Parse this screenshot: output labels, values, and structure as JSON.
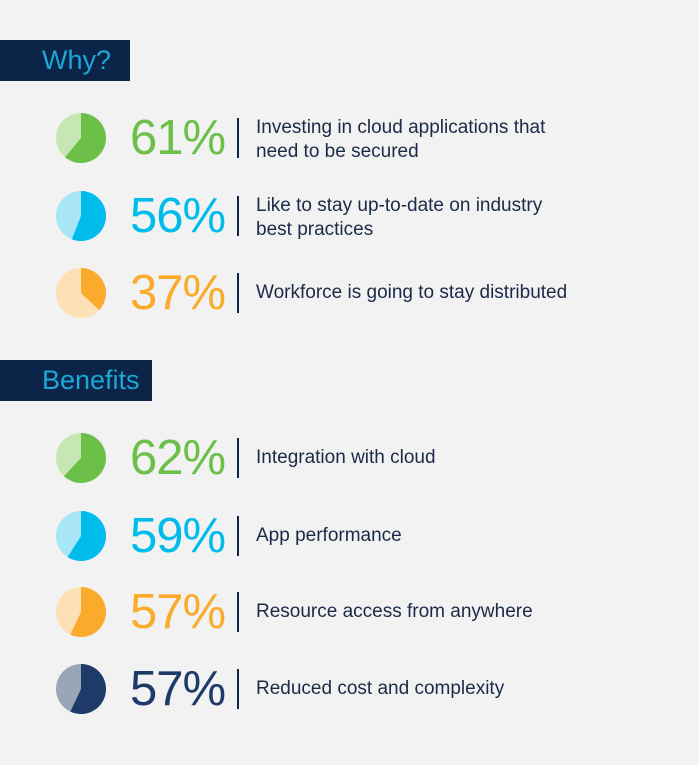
{
  "sections": [
    {
      "title": "Why?",
      "items": [
        {
          "value": 61,
          "label": "61%",
          "text": "Investing in cloud applications that need to be secured",
          "color": "#6cc04a",
          "light": "#c6e6b4"
        },
        {
          "value": 56,
          "label": "56%",
          "text": "Like to stay up-to-date on industry best practices",
          "color": "#00bceb",
          "light": "#a8e6f7"
        },
        {
          "value": 37,
          "label": "37%",
          "text": "Workforce is going to stay distributed",
          "color": "#fbab2c",
          "light": "#fde0b5"
        }
      ]
    },
    {
      "title": "Benefits",
      "items": [
        {
          "value": 62,
          "label": "62%",
          "text": "Integration with cloud",
          "color": "#6cc04a",
          "light": "#c6e6b4"
        },
        {
          "value": 59,
          "label": "59%",
          "text": "App performance",
          "color": "#00bceb",
          "light": "#a8e6f7"
        },
        {
          "value": 57,
          "label": "57%",
          "text": "Resource access from anywhere",
          "color": "#fbab2c",
          "light": "#fde0b5"
        },
        {
          "value": 57,
          "label": "57%",
          "text": "Reduced cost and complexity",
          "color": "#1e3a68",
          "light": "#98a6b7"
        }
      ]
    }
  ],
  "chart_data": {
    "type": "pie",
    "groups": [
      {
        "name": "Why?",
        "categories": [
          "Investing in cloud applications that need to be secured",
          "Like to stay up-to-date on industry best practices",
          "Workforce is going to stay distributed"
        ],
        "values": [
          61,
          56,
          37
        ]
      },
      {
        "name": "Benefits",
        "categories": [
          "Integration with cloud",
          "App performance",
          "Resource access from anywhere",
          "Reduced cost and complexity"
        ],
        "values": [
          62,
          59,
          57,
          57
        ]
      }
    ]
  }
}
